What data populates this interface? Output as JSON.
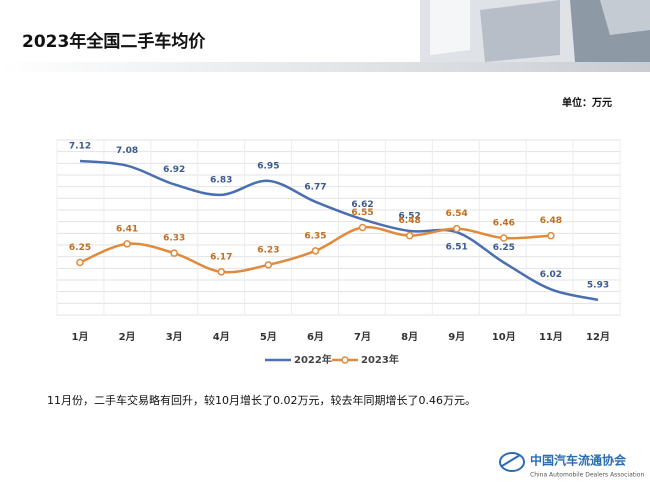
{
  "chart_data": {
    "type": "line",
    "title": "2023年全国二手车均价",
    "unit_label": "单位：万元",
    "note": "11月份，二手车交易略有回升，较10月增长了0.02万元，较去年同期增长了0.46万元。",
    "logo_text": "中国汽车流通协会",
    "logo_subtext": "China Automobile Dealers Association",
    "categories": [
      "1月",
      "2月",
      "3月",
      "4月",
      "5月",
      "6月",
      "7月",
      "8月",
      "9月",
      "10月",
      "11月",
      "12月"
    ],
    "series": [
      {
        "name": "2022年",
        "color": "#4a6fb0",
        "values": [
          7.12,
          7.08,
          6.92,
          6.83,
          6.95,
          6.77,
          6.62,
          6.52,
          6.51,
          6.25,
          6.02,
          5.93
        ]
      },
      {
        "name": "2023年",
        "color": "#e08a3c",
        "values": [
          6.25,
          6.41,
          6.33,
          6.17,
          6.23,
          6.35,
          6.55,
          6.48,
          6.54,
          6.46,
          6.48,
          null
        ]
      }
    ],
    "ylim": [
      5.8,
      7.3
    ],
    "yticks": [
      5.8,
      5.9,
      6.0,
      6.1,
      6.2,
      6.3,
      6.4,
      6.5,
      6.6,
      6.7,
      6.8,
      6.9,
      7.0,
      7.1,
      7.2,
      7.3
    ],
    "grid": true
  }
}
